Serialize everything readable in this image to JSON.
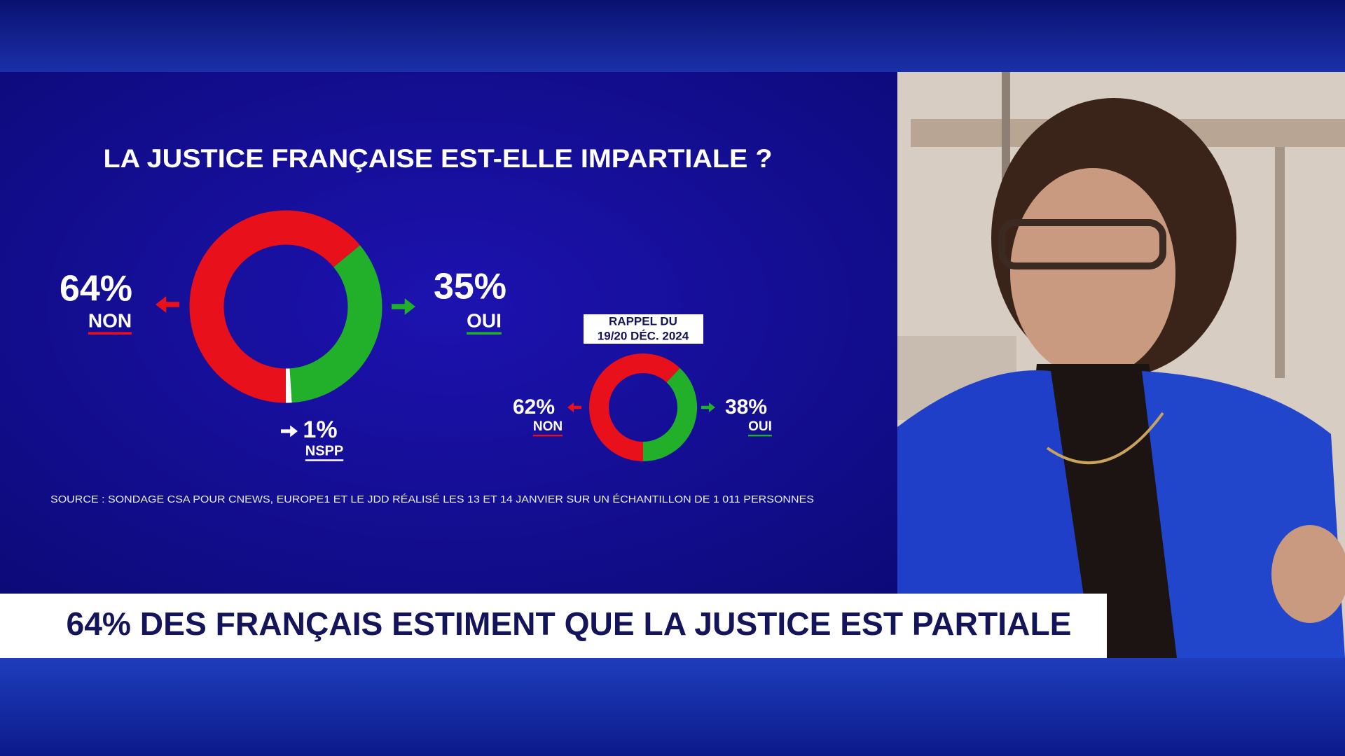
{
  "chart_data": [
    {
      "type": "donut",
      "title": "LA JUSTICE FRANÇAISE EST-ELLE IMPARTIALE ?",
      "categories": [
        "NON",
        "OUI",
        "NSPP"
      ],
      "values": [
        64,
        35,
        1
      ],
      "value_labels": [
        "64%",
        "35%",
        "1%"
      ],
      "colors": [
        "#e8101a",
        "#22b02a",
        "#ffffff"
      ]
    },
    {
      "type": "donut",
      "subtitle": [
        "RAPPEL DU",
        "19/20  DÉC. 2024"
      ],
      "categories": [
        "NON",
        "OUI"
      ],
      "values": [
        62,
        38
      ],
      "value_labels": [
        "62%",
        "38%"
      ],
      "colors": [
        "#e8101a",
        "#22b02a"
      ]
    }
  ],
  "source": "SOURCE : SONDAGE CSA POUR CNEWS, EUROPE1 ET LE JDD RÉALISÉ LES 13 ET 14 JANVIER SUR UN ÉCHANTILLON DE 1 011 PERSONNES",
  "headline": "64% DES FRANÇAIS ESTIMENT QUE LA JUSTICE EST PARTIALE"
}
